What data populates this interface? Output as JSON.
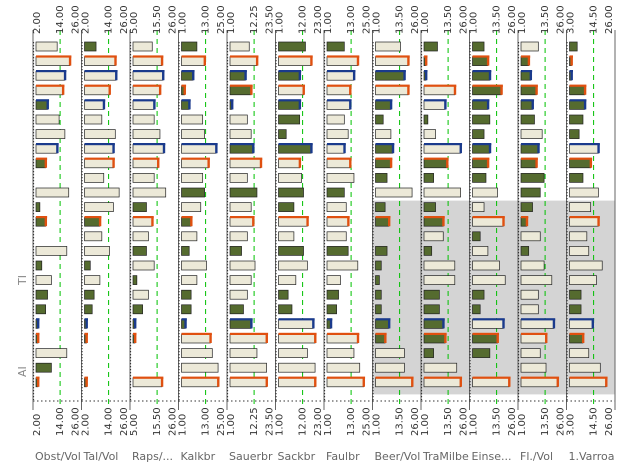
{
  "columns": [
    {
      "name": "Obst/Vol",
      "ticks": [
        "2.00",
        "14.00",
        "26.00"
      ],
      "shaded_from": 99
    },
    {
      "name": "Tal/Vol",
      "ticks": [
        "2.00",
        "14.00",
        "26.00"
      ],
      "shaded_from": 99
    },
    {
      "name": "Raps/...",
      "ticks": [
        "5.00",
        "15.50",
        "26.00"
      ],
      "shaded_from": 99
    },
    {
      "name": "Kalkbr",
      "ticks": [
        "1.00",
        "13.00",
        "25.00"
      ],
      "shaded_from": 99
    },
    {
      "name": "Sauerbr",
      "ticks": [
        "1.00",
        "12.25",
        "23.50"
      ],
      "shaded_from": 99
    },
    {
      "name": "Sackbr",
      "ticks": [
        "1.00",
        "12.00",
        "23.00"
      ],
      "shaded_from": 99
    },
    {
      "name": "Faulbr",
      "ticks": [
        "1.00",
        "13.00",
        "25.00"
      ],
      "shaded_from": 99
    },
    {
      "name": "Beer/Vol",
      "ticks": [
        "1.00",
        "13.50",
        "26.00"
      ],
      "shaded_from": 11
    },
    {
      "name": "TraMilbe",
      "ticks": [
        "1.00",
        "13.50",
        "26.00"
      ],
      "shaded_from": 11
    },
    {
      "name": "Einse...",
      "ticks": [
        "1.00",
        "13.50",
        "26.00"
      ],
      "shaded_from": 11
    },
    {
      "name": "Fl./Vol",
      "ticks": [
        "1.00",
        "13.50",
        "26.00"
      ],
      "shaded_from": 11
    },
    {
      "name": "1.Varroa",
      "ticks": [
        "3.00",
        "14.50",
        "26.00"
      ],
      "shaded_from": 11
    }
  ],
  "row_groups": [
    {
      "label": "TI"
    },
    {
      "label": "AI"
    }
  ],
  "row_count": 24,
  "colors": {
    "bar_light": "#ece9d8",
    "bar_dark": "#556b2f",
    "shade": "#d4d4d4",
    "guide": "#00c000",
    "accent_red": "#e05010",
    "accent_blue": "#1a3a8c"
  },
  "cells": [
    [
      [
        0.55,
        0
      ],
      [
        0.3,
        1
      ],
      [
        0.5,
        0
      ],
      [
        0.4,
        1
      ],
      [
        0.5,
        0
      ],
      [
        0.7,
        1
      ],
      [
        0.45,
        1
      ],
      [
        0.65,
        0
      ],
      [
        0.35,
        1
      ],
      [
        0.3,
        1
      ],
      [
        0.45,
        0
      ],
      [
        0.2,
        1
      ]
    ],
    [
      [
        0.88,
        0,
        "r"
      ],
      [
        0.8,
        0,
        "r"
      ],
      [
        0.75,
        0,
        "r"
      ],
      [
        0.6,
        0,
        "r"
      ],
      [
        0.7,
        0,
        "r"
      ],
      [
        0.85,
        0,
        "r"
      ],
      [
        0.8,
        0,
        "r"
      ],
      [
        0.85,
        0,
        "r"
      ],
      [
        0.05,
        1,
        "r"
      ],
      [
        0.4,
        1,
        "r"
      ],
      [
        0.2,
        1,
        "r"
      ],
      [
        0.05,
        1,
        "r"
      ]
    ],
    [
      [
        0.75,
        0,
        "b"
      ],
      [
        0.82,
        0,
        "b"
      ],
      [
        0.78,
        0,
        "b"
      ],
      [
        0.3,
        1,
        "b"
      ],
      [
        0.4,
        1,
        "b"
      ],
      [
        0.55,
        1,
        "b"
      ],
      [
        0.7,
        0,
        "b"
      ],
      [
        0.75,
        1,
        "b"
      ],
      [
        0.05,
        1,
        "b"
      ],
      [
        0.45,
        1,
        "b"
      ],
      [
        0.25,
        1,
        "b"
      ],
      [
        0.05,
        1,
        "b"
      ]
    ],
    [
      [
        0.7,
        0,
        "r"
      ],
      [
        0.65,
        0,
        "r"
      ],
      [
        0.7,
        0,
        "r"
      ],
      [
        0.08,
        1,
        "r"
      ],
      [
        0.55,
        1,
        "r"
      ],
      [
        0.65,
        0,
        "r"
      ],
      [
        0.6,
        0,
        "r"
      ],
      [
        0.85,
        0,
        "r"
      ],
      [
        0.8,
        0,
        "r"
      ],
      [
        0.75,
        1,
        "r"
      ],
      [
        0.4,
        1,
        "r"
      ],
      [
        0.4,
        1,
        "r"
      ]
    ],
    [
      [
        0.3,
        1,
        "b"
      ],
      [
        0.5,
        0,
        "b"
      ],
      [
        0.55,
        0,
        "b"
      ],
      [
        0.2,
        1,
        "b"
      ],
      [
        0.05,
        1,
        "b"
      ],
      [
        0.55,
        1,
        "b"
      ],
      [
        0.6,
        0,
        "b"
      ],
      [
        0.4,
        1,
        "b"
      ],
      [
        0.55,
        0,
        "b"
      ],
      [
        0.4,
        1,
        "b"
      ],
      [
        0.3,
        1,
        "b"
      ],
      [
        0.4,
        1,
        "b"
      ]
    ],
    [
      [
        0.6,
        0
      ],
      [
        0.45,
        0
      ],
      [
        0.55,
        0
      ],
      [
        0.55,
        0
      ],
      [
        0.45,
        0
      ],
      [
        0.55,
        1
      ],
      [
        0.45,
        0
      ],
      [
        0.2,
        1
      ],
      [
        0.1,
        1
      ],
      [
        0.45,
        1
      ],
      [
        0.35,
        1
      ],
      [
        0.35,
        1
      ]
    ],
    [
      [
        0.75,
        0
      ],
      [
        0.8,
        0
      ],
      [
        0.7,
        0
      ],
      [
        0.6,
        0
      ],
      [
        0.55,
        0
      ],
      [
        0.2,
        1
      ],
      [
        0.55,
        0
      ],
      [
        0.4,
        0
      ],
      [
        0.3,
        0
      ],
      [
        0.3,
        1
      ],
      [
        0.55,
        0
      ],
      [
        0.25,
        1
      ]
    ],
    [
      [
        0.55,
        0,
        "b"
      ],
      [
        0.75,
        0,
        "b"
      ],
      [
        0.8,
        0,
        "b"
      ],
      [
        0.9,
        0,
        "b"
      ],
      [
        0.6,
        1,
        "b"
      ],
      [
        0.85,
        1,
        "b"
      ],
      [
        0.45,
        0,
        "b"
      ],
      [
        0.45,
        1,
        "b"
      ],
      [
        0.95,
        0,
        "b"
      ],
      [
        0.45,
        1,
        "b"
      ],
      [
        0.45,
        1,
        "b"
      ],
      [
        0.75,
        0,
        "b"
      ]
    ],
    [
      [
        0.25,
        1,
        "r"
      ],
      [
        0.75,
        0,
        "r"
      ],
      [
        0.65,
        0,
        "r"
      ],
      [
        0.7,
        0,
        "r"
      ],
      [
        0.8,
        0,
        "r"
      ],
      [
        0.55,
        0,
        "r"
      ],
      [
        0.6,
        0,
        "r"
      ],
      [
        0.4,
        1,
        "r"
      ],
      [
        0.6,
        1,
        "r"
      ],
      [
        0.4,
        1,
        "r"
      ],
      [
        0.4,
        1,
        "r"
      ],
      [
        0.55,
        1,
        "r"
      ]
    ],
    [
      [
        0.0,
        0
      ],
      [
        0.5,
        0
      ],
      [
        0.55,
        0
      ],
      [
        0.55,
        0
      ],
      [
        0.45,
        0
      ],
      [
        0.6,
        0
      ],
      [
        0.7,
        0
      ],
      [
        0.3,
        1
      ],
      [
        0.25,
        1
      ],
      [
        0.35,
        1
      ],
      [
        0.6,
        1
      ],
      [
        0.35,
        1
      ]
    ],
    [
      [
        0.85,
        0
      ],
      [
        0.9,
        0
      ],
      [
        0.85,
        0
      ],
      [
        0.6,
        1
      ],
      [
        0.7,
        1
      ],
      [
        0.65,
        1
      ],
      [
        0.45,
        1
      ],
      [
        0.95,
        0
      ],
      [
        0.95,
        0
      ],
      [
        0.65,
        0
      ],
      [
        0.5,
        1
      ],
      [
        0.75,
        0
      ]
    ],
    [
      [
        0.1,
        1
      ],
      [
        0.75,
        0
      ],
      [
        0.35,
        1
      ],
      [
        0.5,
        0
      ],
      [
        0.55,
        0
      ],
      [
        0.4,
        1
      ],
      [
        0.5,
        0
      ],
      [
        0.25,
        1
      ],
      [
        0.3,
        1
      ],
      [
        0.3,
        0
      ],
      [
        0.3,
        1
      ],
      [
        0.55,
        0
      ]
    ],
    [
      [
        0.25,
        1,
        "r"
      ],
      [
        0.4,
        1,
        "r"
      ],
      [
        0.5,
        0,
        "r"
      ],
      [
        0.25,
        1,
        "r"
      ],
      [
        0.6,
        0,
        "r"
      ],
      [
        0.75,
        0,
        "r"
      ],
      [
        0.55,
        0,
        "r"
      ],
      [
        0.35,
        1,
        "r"
      ],
      [
        0.5,
        1,
        "r"
      ],
      [
        0.8,
        0,
        "r"
      ],
      [
        0.15,
        1,
        "r"
      ],
      [
        0.75,
        0,
        "r"
      ]
    ],
    [
      [
        0.0,
        0
      ],
      [
        0.45,
        0
      ],
      [
        0.4,
        0
      ],
      [
        0.4,
        0
      ],
      [
        0.45,
        0
      ],
      [
        0.4,
        0
      ],
      [
        0.5,
        0
      ],
      [
        0.0,
        0
      ],
      [
        0.5,
        0
      ],
      [
        0.2,
        1
      ],
      [
        0.5,
        0
      ],
      [
        0.45,
        0
      ]
    ],
    [
      [
        0.8,
        0
      ],
      [
        0.65,
        0
      ],
      [
        0.35,
        1
      ],
      [
        0.2,
        1
      ],
      [
        0.3,
        1
      ],
      [
        0.65,
        1
      ],
      [
        0.55,
        1
      ],
      [
        0.3,
        1
      ],
      [
        0.2,
        1
      ],
      [
        0.4,
        0
      ],
      [
        0.2,
        1
      ],
      [
        0.5,
        0
      ]
    ],
    [
      [
        0.15,
        1
      ],
      [
        0.15,
        1
      ],
      [
        0.55,
        0
      ],
      [
        0.65,
        0
      ],
      [
        0.65,
        0
      ],
      [
        0.75,
        0
      ],
      [
        0.8,
        0
      ],
      [
        0.15,
        1
      ],
      [
        0.8,
        0
      ],
      [
        0.7,
        0
      ],
      [
        0.6,
        0
      ],
      [
        0.85,
        0
      ]
    ],
    [
      [
        0.4,
        0
      ],
      [
        0.4,
        0
      ],
      [
        0.1,
        1
      ],
      [
        0.4,
        0
      ],
      [
        0.55,
        0
      ],
      [
        0.45,
        0
      ],
      [
        0.35,
        0
      ],
      [
        0.1,
        1
      ],
      [
        0.8,
        0
      ],
      [
        0.85,
        0
      ],
      [
        0.8,
        0
      ],
      [
        0.7,
        0
      ]
    ],
    [
      [
        0.3,
        1
      ],
      [
        0.25,
        1
      ],
      [
        0.4,
        0
      ],
      [
        0.25,
        1
      ],
      [
        0.45,
        0
      ],
      [
        0.25,
        1
      ],
      [
        0.3,
        1
      ],
      [
        0.15,
        1
      ],
      [
        0.4,
        1
      ],
      [
        0.3,
        1
      ],
      [
        0.45,
        0
      ],
      [
        0.3,
        1
      ]
    ],
    [
      [
        0.25,
        1
      ],
      [
        0.2,
        1
      ],
      [
        0.25,
        1
      ],
      [
        0.25,
        1
      ],
      [
        0.35,
        1
      ],
      [
        0.35,
        1
      ],
      [
        0.25,
        1
      ],
      [
        0.15,
        1
      ],
      [
        0.4,
        1
      ],
      [
        0.2,
        1
      ],
      [
        0.45,
        0
      ],
      [
        0.3,
        1
      ]
    ],
    [
      [
        0.05,
        1,
        "b"
      ],
      [
        0.05,
        1,
        "b"
      ],
      [
        0.05,
        1,
        "b"
      ],
      [
        0.1,
        1,
        "b"
      ],
      [
        0.55,
        1,
        "b"
      ],
      [
        0.9,
        0,
        "b"
      ],
      [
        0.1,
        1,
        "b"
      ],
      [
        0.35,
        1,
        "b"
      ],
      [
        0.5,
        1,
        "b"
      ],
      [
        0.8,
        0,
        "b"
      ],
      [
        0.85,
        0,
        "b"
      ],
      [
        0.6,
        0,
        "b"
      ]
    ],
    [
      [
        0.05,
        1,
        "r"
      ],
      [
        0.05,
        1,
        "r"
      ],
      [
        0.05,
        1,
        "r"
      ],
      [
        0.75,
        0,
        "r"
      ],
      [
        0.95,
        0,
        "r"
      ],
      [
        0.95,
        0,
        "r"
      ],
      [
        0.8,
        0,
        "r"
      ],
      [
        0.25,
        1,
        "r"
      ],
      [
        0.55,
        1,
        "r"
      ],
      [
        0.65,
        1,
        "r"
      ],
      [
        0.65,
        0,
        "r"
      ],
      [
        0.35,
        1,
        "r"
      ]
    ],
    [
      [
        0.8,
        0
      ],
      [
        0.0,
        0
      ],
      [
        0.0,
        0
      ],
      [
        0.8,
        0
      ],
      [
        0.7,
        0
      ],
      [
        0.75,
        0
      ],
      [
        0.7,
        0
      ],
      [
        0.75,
        0
      ],
      [
        0.25,
        1
      ],
      [
        0.45,
        1
      ],
      [
        0.5,
        0
      ],
      [
        0.5,
        0
      ]
    ],
    [
      [
        0.4,
        1
      ],
      [
        0.0,
        0
      ],
      [
        0.0,
        0
      ],
      [
        0.95,
        0
      ],
      [
        0.95,
        0
      ],
      [
        0.95,
        0
      ],
      [
        0.85,
        0
      ],
      [
        0.75,
        0
      ],
      [
        0.85,
        0
      ],
      [
        0.0,
        0
      ],
      [
        0.65,
        0
      ],
      [
        0.8,
        0
      ]
    ],
    [
      [
        0.05,
        1,
        "r"
      ],
      [
        0.05,
        1,
        "r"
      ],
      [
        0.75,
        0,
        "r"
      ],
      [
        0.95,
        0,
        "r"
      ],
      [
        0.95,
        0,
        "r"
      ],
      [
        0.95,
        0,
        "r"
      ],
      [
        0.95,
        0,
        "r"
      ],
      [
        0.95,
        0,
        "r"
      ],
      [
        0.95,
        0,
        "r"
      ],
      [
        0.95,
        0,
        "r"
      ],
      [
        0.95,
        0,
        "r"
      ],
      [
        0.95,
        0,
        "r"
      ]
    ]
  ]
}
